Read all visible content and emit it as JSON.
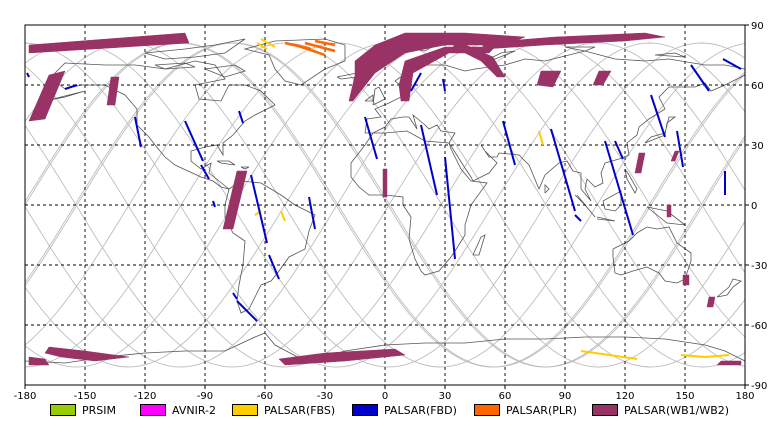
{
  "chart_data": {
    "type": "map",
    "xlim": [
      -180,
      180
    ],
    "ylim": [
      -90,
      90
    ],
    "x_ticks": [
      -180,
      -150,
      -120,
      -90,
      -60,
      -30,
      0,
      30,
      60,
      90,
      120,
      150,
      180
    ],
    "y_ticks": [
      90,
      60,
      30,
      0,
      -30,
      -60,
      -90
    ],
    "grid": true,
    "legend": {
      "placement": "bottom",
      "entries": [
        {
          "name": "PRSIM",
          "color": "#99cc00"
        },
        {
          "name": "AVNIR-2",
          "color": "#ff00ff"
        },
        {
          "name": "PALSAR(FBS)",
          "color": "#ffcc00"
        },
        {
          "name": "PALSAR(FBD)",
          "color": "#0000cc"
        },
        {
          "name": "PALSAR(PLR)",
          "color": "#ff6600"
        },
        {
          "name": "PALSAR(WB1/WB2)",
          "color": "#993366"
        }
      ]
    },
    "wb_swaths": [
      [
        [
          -178,
          80
        ],
        [
          -100,
          86
        ],
        [
          -98,
          81
        ],
        [
          -178,
          76
        ]
      ],
      [
        [
          -168,
          65
        ],
        [
          -160,
          67
        ],
        [
          -170,
          43
        ],
        [
          -178,
          42
        ]
      ],
      [
        [
          -137,
          64
        ],
        [
          -133,
          64
        ],
        [
          -135,
          50
        ],
        [
          -139,
          50
        ]
      ],
      [
        [
          -74,
          17
        ],
        [
          -69,
          17
        ],
        [
          -76,
          -12
        ],
        [
          -81,
          -12
        ]
      ],
      [
        [
          -15,
          72
        ],
        [
          -5,
          80
        ],
        [
          10,
          86
        ],
        [
          40,
          86
        ],
        [
          70,
          84
        ],
        [
          60,
          80
        ],
        [
          30,
          80
        ],
        [
          10,
          76
        ],
        [
          -5,
          66
        ],
        [
          -16,
          52
        ],
        [
          -18,
          52
        ],
        [
          -15,
          65
        ]
      ],
      [
        [
          7,
          60
        ],
        [
          10,
          72
        ],
        [
          30,
          79
        ],
        [
          55,
          79
        ],
        [
          52,
          76
        ],
        [
          32,
          76
        ],
        [
          14,
          66
        ],
        [
          12,
          52
        ],
        [
          8,
          52
        ]
      ],
      [
        [
          48,
          81
        ],
        [
          85,
          84
        ],
        [
          130,
          86
        ],
        [
          140,
          84
        ],
        [
          120,
          82
        ],
        [
          80,
          80
        ],
        [
          50,
          78
        ]
      ],
      [
        [
          36,
          82
        ],
        [
          54,
          74
        ],
        [
          60,
          64
        ],
        [
          56,
          64
        ],
        [
          48,
          72
        ],
        [
          34,
          79
        ]
      ],
      [
        [
          78,
          67
        ],
        [
          88,
          67
        ],
        [
          84,
          59
        ],
        [
          76,
          60
        ]
      ],
      [
        [
          107,
          67
        ],
        [
          113,
          67
        ],
        [
          109,
          60
        ],
        [
          104,
          60
        ]
      ],
      [
        [
          127,
          26
        ],
        [
          130,
          26
        ],
        [
          128,
          16
        ],
        [
          125,
          16
        ]
      ],
      [
        [
          145,
          27
        ],
        [
          147,
          27
        ],
        [
          145,
          22
        ],
        [
          143,
          22
        ]
      ],
      [
        [
          141,
          0
        ],
        [
          143,
          0
        ],
        [
          143,
          -6
        ],
        [
          141,
          -6
        ]
      ],
      [
        [
          149,
          -35
        ],
        [
          152,
          -35
        ],
        [
          152,
          -40
        ],
        [
          149,
          -40
        ]
      ],
      [
        [
          162,
          -46
        ],
        [
          165,
          -46
        ],
        [
          164,
          -51
        ],
        [
          161,
          -51
        ]
      ],
      [
        [
          -1,
          18
        ],
        [
          1,
          18
        ],
        [
          1,
          4
        ],
        [
          -1,
          4
        ]
      ],
      [
        [
          -178,
          -76
        ],
        [
          -170,
          -77
        ],
        [
          -168,
          -80
        ],
        [
          -178,
          -80
        ]
      ],
      [
        [
          -168,
          -71
        ],
        [
          -150,
          -73
        ],
        [
          -128,
          -76
        ],
        [
          -145,
          -78
        ],
        [
          -162,
          -76
        ],
        [
          -170,
          -74
        ]
      ],
      [
        [
          -53,
          -77
        ],
        [
          -30,
          -74
        ],
        [
          5,
          -72
        ],
        [
          10,
          -75
        ],
        [
          -20,
          -78
        ],
        [
          -50,
          -80
        ]
      ],
      [
        [
          168,
          -78
        ],
        [
          178,
          -78
        ],
        [
          178,
          -80
        ],
        [
          166,
          -80
        ]
      ]
    ],
    "fbd_tracks": [
      [
        [
          -179,
          66
        ],
        [
          -178,
          64
        ]
      ],
      [
        [
          -160,
          58
        ],
        [
          -154,
          60
        ]
      ],
      [
        [
          -125,
          44
        ],
        [
          -122,
          29
        ]
      ],
      [
        [
          -100,
          42
        ],
        [
          -91,
          22
        ]
      ],
      [
        [
          -92,
          20
        ],
        [
          -88,
          13
        ]
      ],
      [
        [
          -86,
          2
        ],
        [
          -85,
          -1
        ]
      ],
      [
        [
          -73,
          47
        ],
        [
          -71,
          41
        ]
      ],
      [
        [
          -67,
          15
        ],
        [
          -59,
          -19
        ]
      ],
      [
        [
          -58,
          -25
        ],
        [
          -53,
          -37
        ]
      ],
      [
        [
          -74,
          -48
        ],
        [
          -64,
          -58
        ]
      ],
      [
        [
          -38,
          4
        ],
        [
          -35,
          -12
        ]
      ],
      [
        [
          -10,
          44
        ],
        [
          -4,
          23
        ]
      ],
      [
        [
          18,
          40
        ],
        [
          26,
          5
        ]
      ],
      [
        [
          30,
          24
        ],
        [
          35,
          -27
        ]
      ],
      [
        [
          18,
          66
        ],
        [
          13,
          57
        ]
      ],
      [
        [
          29,
          63
        ],
        [
          30,
          57
        ]
      ],
      [
        [
          59,
          42
        ],
        [
          65,
          20
        ]
      ],
      [
        [
          83,
          38
        ],
        [
          95,
          -3
        ]
      ],
      [
        [
          95,
          -5
        ],
        [
          98,
          -8
        ]
      ],
      [
        [
          110,
          32
        ],
        [
          124,
          -15
        ]
      ],
      [
        [
          115,
          32
        ],
        [
          119,
          23
        ]
      ],
      [
        [
          133,
          55
        ],
        [
          140,
          34
        ]
      ],
      [
        [
          146,
          37
        ],
        [
          149,
          19
        ]
      ],
      [
        [
          153,
          70
        ],
        [
          162,
          57
        ]
      ],
      [
        [
          169,
          73
        ],
        [
          178,
          68
        ]
      ],
      [
        [
          170,
          17
        ],
        [
          170,
          5
        ]
      ],
      [
        [
          -76,
          -44
        ],
        [
          -74,
          -47
        ]
      ]
    ],
    "fbs_tracks": [
      [
        [
          -62,
          83
        ],
        [
          -55,
          79
        ]
      ],
      [
        [
          -64,
          81
        ],
        [
          -59,
          78
        ]
      ],
      [
        [
          77,
          37
        ],
        [
          79,
          30
        ]
      ],
      [
        [
          -52,
          -3
        ],
        [
          -50,
          -8
        ]
      ],
      [
        [
          98,
          -73
        ],
        [
          126,
          -77
        ]
      ],
      [
        [
          -65,
          -5
        ],
        [
          -62,
          -3
        ]
      ]
    ],
    "plr_tracks": [
      [
        [
          -45,
          80
        ],
        [
          -30,
          75
        ]
      ],
      [
        [
          -40,
          81
        ],
        [
          -25,
          77
        ]
      ],
      [
        [
          -50,
          81
        ],
        [
          -37,
          78
        ]
      ],
      [
        [
          -35,
          82
        ],
        [
          -25,
          80
        ]
      ]
    ],
    "fbs_antarctic": [
      [
        [
          148,
          -75
        ],
        [
          160,
          -76
        ]
      ],
      [
        [
          160,
          -76
        ],
        [
          172,
          -75
        ]
      ]
    ]
  }
}
